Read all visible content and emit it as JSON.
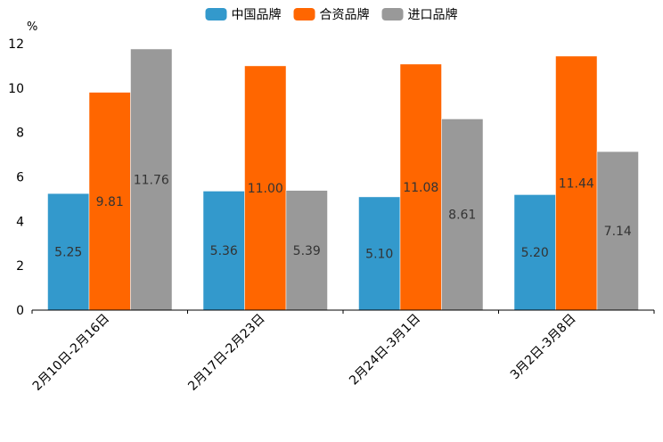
{
  "chart_data": {
    "type": "bar",
    "title": "",
    "xlabel": "",
    "ylabel": "%",
    "ylim": [
      0,
      12
    ],
    "yticks": [
      0,
      2,
      4,
      6,
      8,
      10,
      12
    ],
    "grid": false,
    "legend_position": "top-center",
    "categories": [
      "2月10日-2月16日",
      "2月17日-2月23日",
      "2月24日-3月1日",
      "3月2日-3月8日"
    ],
    "series": [
      {
        "name": "中国品牌",
        "color": "#3399cc",
        "values": [
          5.25,
          5.36,
          5.1,
          5.2
        ],
        "labels": [
          "5.25",
          "5.36",
          "5.10",
          "5.20"
        ]
      },
      {
        "name": "合资品牌",
        "color": "#ff6600",
        "values": [
          9.81,
          11.0,
          11.08,
          11.44
        ],
        "labels": [
          "9.81",
          "11.00",
          "11.08",
          "11.44"
        ]
      },
      {
        "name": "进口品牌",
        "color": "#999999",
        "values": [
          11.76,
          5.39,
          8.61,
          7.14
        ],
        "labels": [
          "11.76",
          "5.39",
          "8.61",
          "7.14"
        ]
      }
    ]
  }
}
